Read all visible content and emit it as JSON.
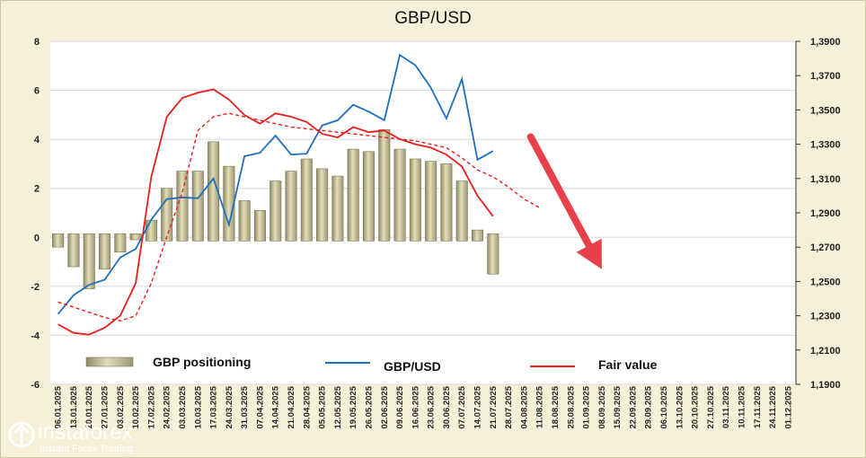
{
  "chart_data": {
    "type": "bar+line",
    "title": "GBP/USD",
    "left_axis": {
      "min": -6,
      "max": 8,
      "ticks": [
        "8",
        "6",
        "4",
        "2",
        "0",
        "-2",
        "-4",
        "-6"
      ]
    },
    "right_axis": {
      "min": 1.19,
      "max": 1.39,
      "ticks": [
        "1,3900",
        "1,3700",
        "1,3500",
        "1,3300",
        "1,3100",
        "1,2900",
        "1,2700",
        "1,2500",
        "1,2300",
        "1,2100",
        "1,1900"
      ]
    },
    "x": [
      "06.01.2025",
      "13.01.2025",
      "20.01.2025",
      "27.01.2025",
      "03.02.2025",
      "10.02.2025",
      "17.02.2025",
      "24.02.2025",
      "03.03.2025",
      "10.03.2025",
      "17.03.2025",
      "24.03.2025",
      "31.03.2025",
      "07.04.2025",
      "14.04.2025",
      "21.04.2025",
      "28.04.2025",
      "05.05.2025",
      "12.05.2025",
      "19.05.2025",
      "26.05.2025",
      "02.06.2025",
      "09.06.2025",
      "16.06.2025",
      "23.06.2025",
      "30.06.2025",
      "07.07.2025",
      "14.07.2025",
      "21.07.2025",
      "28.07.2025",
      "04.08.2025",
      "11.08.2025",
      "18.08.2025",
      "25.08.2025",
      "01.09.2025",
      "08.09.2025",
      "15.09.2025",
      "22.09.2025",
      "29.09.2025",
      "06.10.2025",
      "13.10.2025",
      "20.10.2025",
      "27.10.2025",
      "03.11.2025",
      "10.11.2025",
      "17.11.2025",
      "24.11.2025",
      "01.12.2025"
    ],
    "series": [
      {
        "name": "GBP positioning",
        "kind": "bar",
        "axis": "left",
        "color": "#c8c192",
        "values": [
          -0.4,
          -1.2,
          -2.1,
          -1.3,
          -0.6,
          -0.1,
          0.7,
          2.0,
          2.7,
          2.7,
          3.9,
          2.9,
          1.5,
          1.1,
          2.3,
          2.7,
          3.2,
          2.8,
          2.5,
          3.6,
          3.5,
          4.4,
          3.6,
          3.2,
          3.1,
          3.0,
          2.3,
          0.3,
          -1.5,
          null,
          null,
          null,
          null,
          null,
          null,
          null,
          null,
          null,
          null,
          null,
          null,
          null,
          null,
          null,
          null,
          null,
          null,
          null
        ]
      },
      {
        "name": "GBP/USD",
        "kind": "line",
        "axis": "right",
        "color": "#1f6fbf",
        "values": [
          1.231,
          1.242,
          1.248,
          1.251,
          1.264,
          1.269,
          1.286,
          1.298,
          1.299,
          1.2985,
          1.31,
          1.283,
          1.323,
          1.325,
          1.335,
          1.324,
          1.3245,
          1.341,
          1.344,
          1.353,
          1.349,
          1.344,
          1.382,
          1.376,
          1.363,
          1.345,
          1.368,
          1.321,
          1.326,
          null,
          null,
          null,
          null,
          null,
          null,
          null,
          null,
          null,
          null,
          null,
          null,
          null,
          null,
          null,
          null,
          null,
          null,
          null
        ]
      },
      {
        "name": "Fair value",
        "kind": "line",
        "axis": "right",
        "color": "#e81e1e",
        "values": [
          1.225,
          1.22,
          1.219,
          1.223,
          1.23,
          1.249,
          1.311,
          1.346,
          1.357,
          1.36,
          1.362,
          1.356,
          1.347,
          1.342,
          1.348,
          1.346,
          1.343,
          1.336,
          1.334,
          1.34,
          1.337,
          1.338,
          1.333,
          1.33,
          1.328,
          1.324,
          1.317,
          1.3,
          1.288,
          null,
          null,
          null,
          null,
          null,
          null,
          null,
          null,
          null,
          null,
          null,
          null,
          null,
          null,
          null,
          null,
          null,
          null,
          null
        ]
      },
      {
        "name": "Fair value forecast",
        "kind": "line",
        "dashed": true,
        "axis": "right",
        "color": "#e81e1e",
        "values": [
          1.238,
          1.235,
          1.232,
          1.229,
          1.227,
          1.23,
          1.249,
          1.276,
          1.302,
          1.338,
          1.346,
          1.348,
          1.346,
          1.344,
          1.342,
          1.34,
          1.339,
          1.338,
          1.337,
          1.336,
          1.335,
          1.334,
          1.333,
          1.332,
          1.33,
          1.328,
          1.322,
          1.315,
          1.311,
          1.305,
          1.298,
          1.293,
          null,
          null,
          null,
          null,
          null,
          null,
          null,
          null,
          null,
          null,
          null,
          null,
          null,
          null,
          null,
          null
        ]
      }
    ],
    "arrow": {
      "color": "#e8404a",
      "from_x_index": 31,
      "from_y_left": 4.1,
      "to_x_index": 35,
      "to_y_left": -1.3
    },
    "legend": {
      "position": "bottom",
      "labels": [
        "GBP positioning",
        "GBP/USD",
        "Fair value"
      ]
    },
    "grid": "horizontal"
  },
  "logo": {
    "name": "instaforex",
    "tagline": "Instant Forex Trading",
    "icon": "instaforex-logo-icon"
  }
}
